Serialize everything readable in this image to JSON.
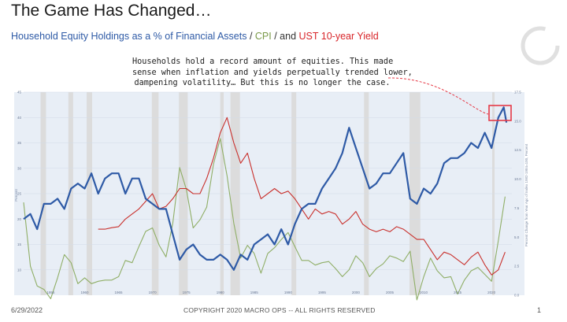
{
  "title": "The Game Has Changed…",
  "subtitle": {
    "equity_label": "Household Equity Holdings as a % of Financial Assets",
    "sep1": " / ",
    "cpi_label": "CPI",
    "sep2": " / and ",
    "yield_label": "UST 10-year Yield"
  },
  "annotation": [
    "Households hold a record amount of equities. This made",
    "sense when inflation and yields perpetually trended lower,",
    "dampening volatility… But this is no longer the case."
  ],
  "footer": {
    "date": "6/29/2022",
    "copyright": "COPYRIGHT 2020 MACRO OPS -- ALL RIGHTS RESERVED",
    "page": "1"
  },
  "colors": {
    "equity": "#2e5aa6",
    "cpi": "#8fae66",
    "yield": "#c9302c",
    "recession": "#dcdcdc",
    "highlight": "#e63946"
  },
  "chart_data": {
    "type": "line",
    "title": "Household Equity Holdings as a % of Financial Assets / CPI / and UST 10-year Yield",
    "xlabel": "",
    "ylabel_left": "Percent",
    "ylabel_right": "Percent Change from Year Ago of Index 1982-1984=100, Percent",
    "xlim": [
      1951,
      2023
    ],
    "ylim_left": [
      5,
      45
    ],
    "ylim_right": [
      0,
      17.5
    ],
    "x_ticks": [
      "1955",
      "1960",
      "1965",
      "1970",
      "1975",
      "1980",
      "1985",
      "1990",
      "1995",
      "2000",
      "2005",
      "2010",
      "2015",
      "2020"
    ],
    "y_left_ticks": [
      "10",
      "15",
      "20",
      "25",
      "30",
      "35",
      "40",
      "45"
    ],
    "y_right_ticks": [
      "0.0",
      "2.5",
      "5.0",
      "7.5",
      "10.0",
      "12.5",
      "15.0",
      "17.5"
    ],
    "recessions": [
      [
        1953.5,
        1954.3
      ],
      [
        1957.6,
        1958.3
      ],
      [
        1960.3,
        1961.1
      ],
      [
        1969.9,
        1970.9
      ],
      [
        1973.9,
        1975.2
      ],
      [
        1980.0,
        1980.5
      ],
      [
        1981.5,
        1982.9
      ],
      [
        1990.5,
        1991.2
      ],
      [
        2001.2,
        2001.9
      ],
      [
        2007.9,
        2009.5
      ],
      [
        2020.1,
        2020.4
      ]
    ],
    "series": [
      {
        "name": "Household Equity Holdings as a % of Financial Assets",
        "axis": "left",
        "x": [
          1951,
          1952,
          1953,
          1954,
          1955,
          1956,
          1957,
          1958,
          1959,
          1960,
          1961,
          1962,
          1963,
          1964,
          1965,
          1966,
          1967,
          1968,
          1969,
          1970,
          1971,
          1972,
          1973,
          1974,
          1975,
          1976,
          1977,
          1978,
          1979,
          1980,
          1981,
          1982,
          1983,
          1984,
          1985,
          1986,
          1987,
          1988,
          1989,
          1990,
          1991,
          1992,
          1993,
          1994,
          1995,
          1996,
          1997,
          1998,
          1999,
          2000,
          2001,
          2002,
          2003,
          2004,
          2005,
          2006,
          2007,
          2008,
          2009,
          2010,
          2011,
          2012,
          2013,
          2014,
          2015,
          2016,
          2017,
          2018,
          2019,
          2020,
          2021,
          2021.8,
          2022.2
        ],
        "values": [
          20,
          21,
          18,
          23,
          23,
          24,
          22,
          26,
          27,
          26,
          29,
          25,
          28,
          29,
          29,
          25,
          28,
          28,
          24,
          23,
          22,
          22,
          17,
          12,
          14,
          15,
          13,
          12,
          12,
          13,
          12,
          10,
          13,
          12,
          15,
          16,
          17,
          15,
          18,
          15,
          19,
          22,
          23,
          23,
          26,
          28,
          30,
          33,
          38,
          34,
          30,
          26,
          27,
          29,
          29,
          31,
          33,
          24,
          23,
          26,
          25,
          27,
          31,
          32,
          32,
          33,
          35,
          34,
          37,
          34,
          40,
          42,
          39
        ]
      },
      {
        "name": "CPI",
        "axis": "right",
        "x": [
          1951,
          1952,
          1953,
          1954,
          1955,
          1956,
          1957,
          1958,
          1959,
          1960,
          1961,
          1962,
          1963,
          1964,
          1965,
          1966,
          1967,
          1968,
          1969,
          1970,
          1971,
          1972,
          1973,
          1974,
          1975,
          1976,
          1977,
          1978,
          1979,
          1980,
          1981,
          1982,
          1983,
          1984,
          1985,
          1986,
          1987,
          1988,
          1989,
          1990,
          1991,
          1992,
          1993,
          1994,
          1995,
          1996,
          1997,
          1998,
          1999,
          2000,
          2001,
          2002,
          2003,
          2004,
          2005,
          2006,
          2007,
          2008,
          2009,
          2010,
          2011,
          2012,
          2013,
          2014,
          2015,
          2016,
          2017,
          2018,
          2019,
          2020,
          2021,
          2022
        ],
        "values": [
          8,
          2.5,
          0.8,
          0.5,
          -0.3,
          1.5,
          3.5,
          2.8,
          1.0,
          1.5,
          1.0,
          1.2,
          1.3,
          1.3,
          1.6,
          3.0,
          2.8,
          4.2,
          5.5,
          5.8,
          4.3,
          3.3,
          6.2,
          11.0,
          9.1,
          5.8,
          6.5,
          7.6,
          11.3,
          13.5,
          10.3,
          6.2,
          3.2,
          4.3,
          3.6,
          1.9,
          3.6,
          4.1,
          4.8,
          5.4,
          4.2,
          3.0,
          3.0,
          2.6,
          2.8,
          2.9,
          2.3,
          1.6,
          2.2,
          3.4,
          2.8,
          1.6,
          2.3,
          2.7,
          3.4,
          3.2,
          2.9,
          3.8,
          -0.4,
          1.6,
          3.2,
          2.1,
          1.5,
          1.6,
          0.1,
          1.3,
          2.1,
          2.4,
          1.8,
          1.2,
          4.7,
          8.5
        ]
      },
      {
        "name": "UST 10-year Yield",
        "axis": "left",
        "x": [
          1962,
          1963,
          1964,
          1965,
          1966,
          1967,
          1968,
          1969,
          1970,
          1971,
          1972,
          1973,
          1974,
          1975,
          1976,
          1977,
          1978,
          1979,
          1980,
          1981,
          1982,
          1983,
          1984,
          1985,
          1986,
          1987,
          1988,
          1989,
          1990,
          1991,
          1992,
          1993,
          1994,
          1995,
          1996,
          1997,
          1998,
          1999,
          2000,
          2001,
          2002,
          2003,
          2004,
          2005,
          2006,
          2007,
          2008,
          2009,
          2010,
          2011,
          2012,
          2013,
          2014,
          2015,
          2016,
          2017,
          2018,
          2019,
          2020,
          2021,
          2022
        ],
        "values": [
          18,
          18,
          18.3,
          18.5,
          20,
          21,
          22,
          23.5,
          25,
          22,
          22.5,
          24,
          26,
          26,
          25,
          25,
          28,
          32,
          37,
          40,
          35,
          31,
          33,
          28,
          24,
          25,
          26,
          25,
          25.5,
          24,
          22,
          20,
          22,
          21,
          21.5,
          21,
          19,
          20,
          21.5,
          19,
          18,
          17.5,
          18,
          17.5,
          18.5,
          18,
          17,
          16,
          16,
          14,
          12,
          13.5,
          13,
          12,
          11,
          12.5,
          13.5,
          11,
          9,
          10,
          13.5
        ]
      }
    ]
  }
}
